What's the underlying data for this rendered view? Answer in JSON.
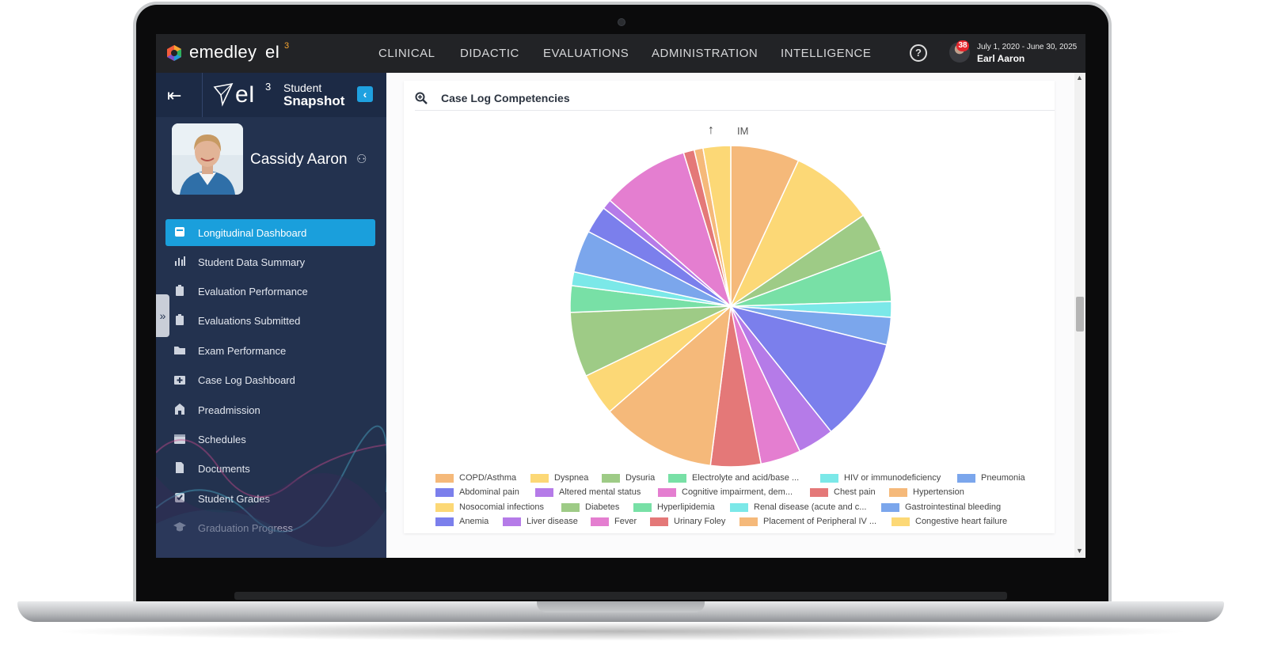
{
  "brand": {
    "name": "emedley",
    "product": "eI",
    "sup": "3"
  },
  "nav": [
    "CLINICAL",
    "DIDACTIC",
    "EVALUATIONS",
    "ADMINISTRATION",
    "INTELLIGENCE"
  ],
  "help_icon": "question-circle-icon",
  "user": {
    "badge": "38",
    "date_range": "July 1, 2020 - June 30, 2025",
    "name": "Earl Aaron"
  },
  "sidebar": {
    "logo_text": "eI",
    "logo_sup": "3",
    "title_top": "Student",
    "title_bottom": "Snapshot",
    "student_name": "Cassidy Aaron",
    "items": [
      {
        "label": "Longitudinal Dashboard",
        "icon": "dashboard-icon",
        "active": true
      },
      {
        "label": "Student Data Summary",
        "icon": "bar-chart-icon"
      },
      {
        "label": "Evaluation Performance",
        "icon": "clipboard-icon"
      },
      {
        "label": "Evaluations Submitted",
        "icon": "clipboard-check-icon"
      },
      {
        "label": "Exam Performance",
        "icon": "folder-icon"
      },
      {
        "label": "Case Log Dashboard",
        "icon": "medical-kit-icon"
      },
      {
        "label": "Preadmission",
        "icon": "building-icon"
      },
      {
        "label": "Schedules",
        "icon": "calendar-icon"
      },
      {
        "label": "Documents",
        "icon": "document-icon"
      },
      {
        "label": "Student Grades",
        "icon": "checkbox-icon"
      },
      {
        "label": "Graduation Progress",
        "icon": "graduation-cap-icon"
      }
    ]
  },
  "card": {
    "title": "Case Log Competencies",
    "level_label": "IM"
  },
  "chart_data": {
    "type": "pie",
    "title": "",
    "slices": [
      {
        "label": "COPD/Asthma",
        "value": 7.0,
        "color": "#f5b97a"
      },
      {
        "label": "Dyspnea",
        "value": 8.6,
        "color": "#fcd876"
      },
      {
        "label": "Dysuria",
        "value": 3.9,
        "color": "#9ecb86"
      },
      {
        "label": "Electrolyte and acid/base ...",
        "value": 5.3,
        "color": "#78e0a6"
      },
      {
        "label": "HIV or immunodeficiency",
        "value": 1.6,
        "color": "#7be8e8"
      },
      {
        "label": "Pneumonia",
        "value": 2.8,
        "color": "#7ba6ec"
      },
      {
        "label": "Anemia",
        "value": 10.5,
        "color": "#7b7fec"
      },
      {
        "label": "Liver disease",
        "value": 3.7,
        "color": "#b57be8"
      },
      {
        "label": "Fever",
        "value": 4.1,
        "color": "#e47ed0"
      },
      {
        "label": "Urinary Foley",
        "value": 5.1,
        "color": "#e47878"
      },
      {
        "label": "Placement of Peripheral IV ...",
        "value": 11.7,
        "color": "#f5b97a"
      },
      {
        "label": "Congestive heart failure",
        "value": 4.3,
        "color": "#fcd876"
      },
      {
        "label": "Diabetes",
        "value": 6.6,
        "color": "#9ecb86"
      },
      {
        "label": "Hyperlipidemia",
        "value": 2.7,
        "color": "#78e0a6"
      },
      {
        "label": "Renal disease (acute and c...",
        "value": 1.4,
        "color": "#7be8e8"
      },
      {
        "label": "Gastrointestinal bleeding",
        "value": 4.3,
        "color": "#7ba6ec"
      },
      {
        "label": "Abdominal pain",
        "value": 2.8,
        "color": "#7b7fec"
      },
      {
        "label": "Altered mental status",
        "value": 1.0,
        "color": "#b57be8"
      },
      {
        "label": "Cognitive impairment, dem...",
        "value": 8.9,
        "color": "#e47ed0"
      },
      {
        "label": "Chest pain",
        "value": 1.1,
        "color": "#e47878"
      },
      {
        "label": "Hypertension",
        "value": 0.9,
        "color": "#f5b97a"
      },
      {
        "label": "Nosocomial infections",
        "value": 2.8,
        "color": "#fcd876"
      }
    ],
    "legend": [
      {
        "label": "COPD/Asthma",
        "color": "#f5b97a"
      },
      {
        "label": "Dyspnea",
        "color": "#fcd876"
      },
      {
        "label": "Dysuria",
        "color": "#9ecb86"
      },
      {
        "label": "Electrolyte and acid/base ...",
        "color": "#78e0a6"
      },
      {
        "label": "HIV or immunodeficiency",
        "color": "#7be8e8"
      },
      {
        "label": "Pneumonia",
        "color": "#7ba6ec"
      },
      {
        "label": "Abdominal pain",
        "color": "#7b7fec"
      },
      {
        "label": "Altered mental status",
        "color": "#b57be8"
      },
      {
        "label": "Cognitive impairment, dem...",
        "color": "#e47ed0"
      },
      {
        "label": "Chest pain",
        "color": "#e47878"
      },
      {
        "label": "Hypertension",
        "color": "#f5b97a"
      },
      {
        "label": "Nosocomial infections",
        "color": "#fcd876"
      },
      {
        "label": "Diabetes",
        "color": "#9ecb86"
      },
      {
        "label": "Hyperlipidemia",
        "color": "#78e0a6"
      },
      {
        "label": "Renal disease (acute and c...",
        "color": "#7be8e8"
      },
      {
        "label": "Gastrointestinal bleeding",
        "color": "#7ba6ec"
      },
      {
        "label": "Anemia",
        "color": "#7b7fec"
      },
      {
        "label": "Liver disease",
        "color": "#b57be8"
      },
      {
        "label": "Fever",
        "color": "#e47ed0"
      },
      {
        "label": "Urinary Foley",
        "color": "#e47878"
      },
      {
        "label": "Placement of Peripheral IV ...",
        "color": "#f5b97a"
      },
      {
        "label": "Congestive heart failure",
        "color": "#fcd876"
      }
    ],
    "legend_placement": "bottom"
  },
  "colors": {
    "accent": "#1a9fdc",
    "sidebar": "#23324f",
    "topbar": "#222326",
    "badge": "#e5262d"
  }
}
